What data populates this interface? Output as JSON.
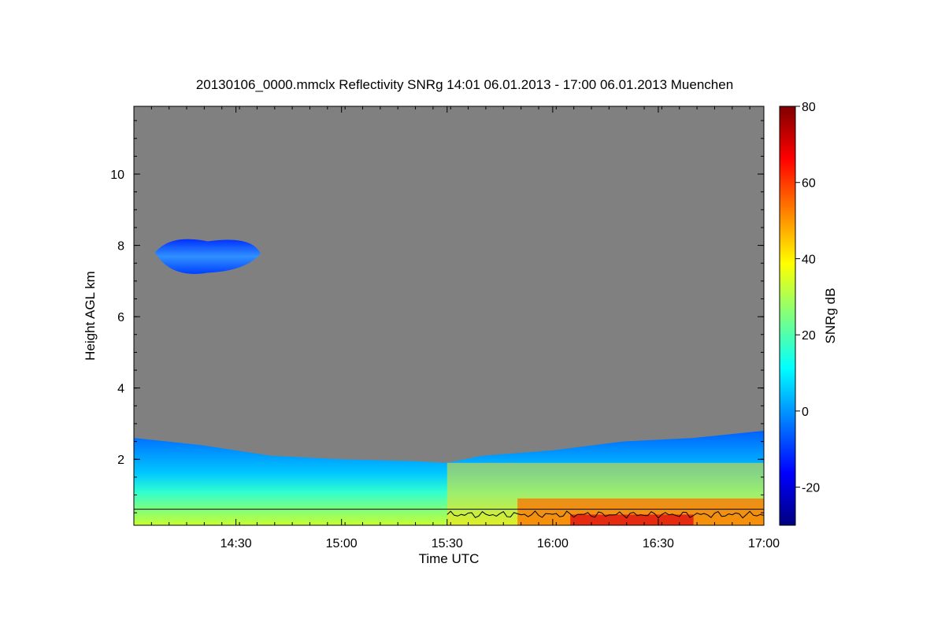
{
  "chart_data": {
    "type": "heatmap",
    "title": "20130106_0000.mmclx Reflectivity SNRg   14:01 06.01.2013 - 17:00 06.01.2013 Muenchen",
    "xlabel": "Time UTC",
    "ylabel": "Height AGL km",
    "colorbar_label": "SNRg dB",
    "x_range_minutes_utc": [
      841,
      1020
    ],
    "x_ticks": [
      {
        "label": "14:30",
        "value": 870
      },
      {
        "label": "15:00",
        "value": 900
      },
      {
        "label": "15:30",
        "value": 930
      },
      {
        "label": "16:00",
        "value": 960
      },
      {
        "label": "16:30",
        "value": 990
      },
      {
        "label": "17:00",
        "value": 1020
      }
    ],
    "y_range_km": [
      0.15,
      11.9
    ],
    "y_ticks": [
      2,
      4,
      6,
      8,
      10
    ],
    "colorbar_range": [
      -30,
      80
    ],
    "colorbar_ticks": [
      -20,
      0,
      20,
      40,
      60,
      80
    ],
    "no_signal_color": "#808080",
    "colormap": [
      "#00007f",
      "#0000ff",
      "#007fff",
      "#00ffff",
      "#7fff7f",
      "#ffff00",
      "#ff7f00",
      "#ff0000",
      "#7f0000"
    ],
    "features": [
      {
        "name": "boundary layer echo",
        "top_km": [
          [
            841,
            2.6
          ],
          [
            860,
            2.4
          ],
          [
            880,
            2.1
          ],
          [
            900,
            2.0
          ],
          [
            920,
            1.95
          ],
          [
            930,
            1.9
          ],
          [
            940,
            2.1
          ],
          [
            960,
            2.25
          ],
          [
            980,
            2.5
          ],
          [
            1000,
            2.6
          ],
          [
            1020,
            2.8
          ]
        ],
        "snr_db": "0 to 60"
      },
      {
        "name": "elevated cloud layer",
        "x_start": 847,
        "x_end": 877,
        "bottom_km": 7.1,
        "top_km": 8.2,
        "snr_db": "-20 to -5"
      }
    ],
    "reference_line_km": 0.6,
    "trace_line": {
      "x_start": 930,
      "x_end": 1020,
      "height_km": [
        0.35,
        0.55
      ]
    }
  }
}
